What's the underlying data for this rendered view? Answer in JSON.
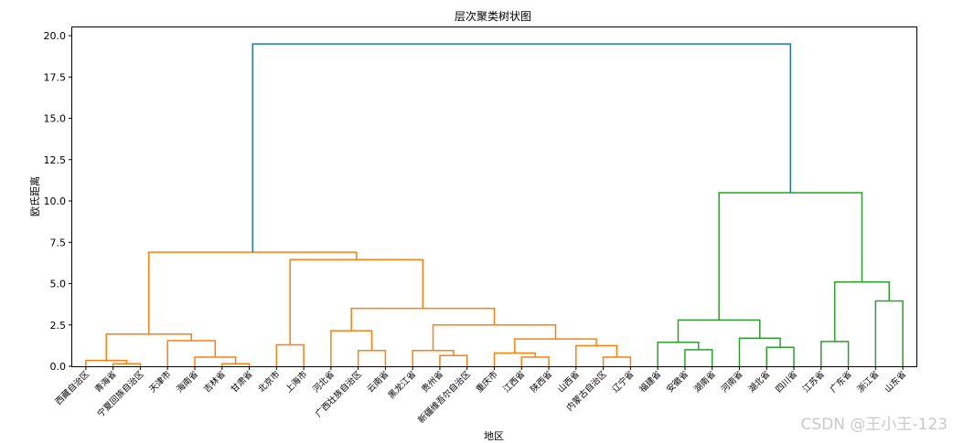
{
  "chart_data": {
    "type": "dendrogram",
    "title": "层次聚类树状图",
    "xlabel": "地区",
    "ylabel": "欧氏距离",
    "ylim": [
      0,
      20.5
    ],
    "yticks": [
      0.0,
      2.5,
      5.0,
      7.5,
      10.0,
      12.5,
      15.0,
      17.5,
      20.0
    ],
    "ytick_labels": [
      "0.0",
      "2.5",
      "5.0",
      "7.5",
      "10.0",
      "12.5",
      "15.0",
      "17.5",
      "20.0"
    ],
    "leaves": [
      "西藏自治区",
      "青海省",
      "宁夏回族自治区",
      "天津市",
      "海南省",
      "吉林省",
      "甘肃省",
      "北京市",
      "上海市",
      "河北省",
      "广西壮族自治区",
      "云南省",
      "黑龙江省",
      "贵州省",
      "新疆维吾尔自治区",
      "重庆市",
      "江西省",
      "陕西省",
      "山西省",
      "内蒙古自治区",
      "辽宁省",
      "福建省",
      "安徽省",
      "湖南省",
      "河南省",
      "湖北省",
      "四川省",
      "江苏省",
      "广东省",
      "浙江省",
      "山东省"
    ],
    "colors": {
      "cluster1": "#ff7f0e",
      "cluster2": "#2ca02c",
      "root": "#1f77b4"
    },
    "links": [
      {
        "a": 1,
        "b": 2,
        "h": 0.15,
        "c": "cluster1"
      },
      {
        "a": 0,
        "b": 31,
        "h": 0.35,
        "c": "cluster1"
      },
      {
        "a": 5,
        "b": 6,
        "h": 0.15,
        "c": "cluster1"
      },
      {
        "a": 4,
        "b": 33,
        "h": 0.55,
        "c": "cluster1"
      },
      {
        "a": 3,
        "b": 34,
        "h": 1.55,
        "c": "cluster1"
      },
      {
        "a": 32,
        "b": 35,
        "h": 1.95,
        "c": "cluster1"
      },
      {
        "a": 7,
        "b": 8,
        "h": 1.3,
        "c": "cluster1"
      },
      {
        "a": 10,
        "b": 11,
        "h": 0.95,
        "c": "cluster1"
      },
      {
        "a": 9,
        "b": 38,
        "h": 2.15,
        "c": "cluster1"
      },
      {
        "a": 13,
        "b": 14,
        "h": 0.65,
        "c": "cluster1"
      },
      {
        "a": 12,
        "b": 40,
        "h": 0.95,
        "c": "cluster1"
      },
      {
        "a": 16,
        "b": 17,
        "h": 0.55,
        "c": "cluster1"
      },
      {
        "a": 15,
        "b": 42,
        "h": 0.8,
        "c": "cluster1"
      },
      {
        "a": 19,
        "b": 20,
        "h": 0.55,
        "c": "cluster1"
      },
      {
        "a": 18,
        "b": 44,
        "h": 1.25,
        "c": "cluster1"
      },
      {
        "a": 43,
        "b": 45,
        "h": 1.65,
        "c": "cluster1"
      },
      {
        "a": 41,
        "b": 46,
        "h": 2.5,
        "c": "cluster1"
      },
      {
        "a": 39,
        "b": 47,
        "h": 3.5,
        "c": "cluster1"
      },
      {
        "a": 37,
        "b": 48,
        "h": 6.45,
        "c": "cluster1"
      },
      {
        "a": 36,
        "b": 49,
        "h": 6.9,
        "c": "cluster1"
      },
      {
        "a": 22,
        "b": 23,
        "h": 1.0,
        "c": "cluster2"
      },
      {
        "a": 21,
        "b": 51,
        "h": 1.45,
        "c": "cluster2"
      },
      {
        "a": 25,
        "b": 26,
        "h": 1.15,
        "c": "cluster2"
      },
      {
        "a": 24,
        "b": 53,
        "h": 1.7,
        "c": "cluster2"
      },
      {
        "a": 52,
        "b": 54,
        "h": 2.8,
        "c": "cluster2"
      },
      {
        "a": 27,
        "b": 28,
        "h": 1.5,
        "c": "cluster2"
      },
      {
        "a": 29,
        "b": 30,
        "h": 3.95,
        "c": "cluster2"
      },
      {
        "a": 56,
        "b": 57,
        "h": 5.1,
        "c": "cluster2"
      },
      {
        "a": 55,
        "b": 58,
        "h": 10.5,
        "c": "cluster2"
      },
      {
        "a": 50,
        "b": 59,
        "h": 19.5,
        "c": "root"
      }
    ]
  },
  "watermark": "CSDN @王小王-123"
}
